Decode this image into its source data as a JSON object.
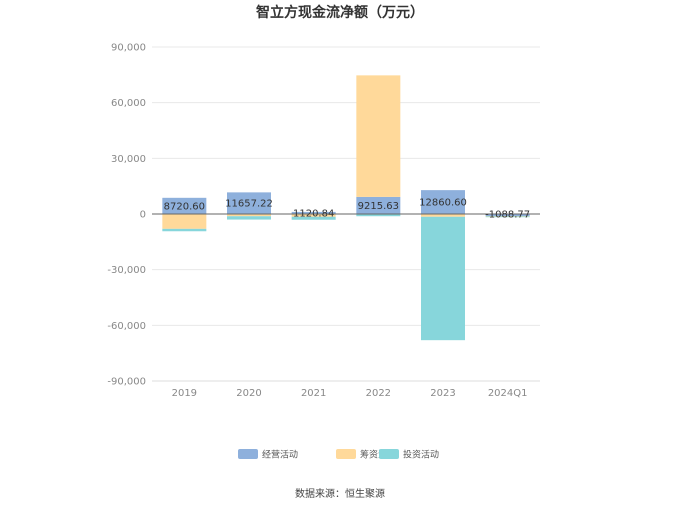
{
  "chart_data": {
    "type": "bar",
    "stacked": true,
    "title": "智立方现金流净额（万元）",
    "categories": [
      "2019",
      "2020",
      "2021",
      "2022",
      "2023",
      "2024Q1"
    ],
    "series": [
      {
        "name": "经营活动",
        "color": "#8eb0dc",
        "values": [
          8720.6,
          11657.22,
          1120.84,
          9215.63,
          12860.6,
          -1088.77
        ]
      },
      {
        "name": "筹资活动",
        "color": "#ffd99a",
        "values": [
          -8000,
          -1200,
          -1500,
          65500,
          -1500,
          -200
        ]
      },
      {
        "name": "投资活动",
        "color": "#87d6db",
        "values": [
          -1300,
          -1800,
          -1600,
          -1200,
          -66500,
          -300
        ]
      }
    ],
    "data_labels": [
      "8720.60",
      "11657.22",
      "1120.84",
      "9215.63",
      "12860.60",
      "-1088.77"
    ],
    "y_ticks": [
      "90,000",
      "60,000",
      "30,000",
      "0",
      "-30,000",
      "-60,000",
      "-90,000"
    ],
    "ylim": [
      -90000,
      90000
    ],
    "grid": true,
    "legend_position": "bottom"
  },
  "source_text": "数据来源：恒生聚源"
}
